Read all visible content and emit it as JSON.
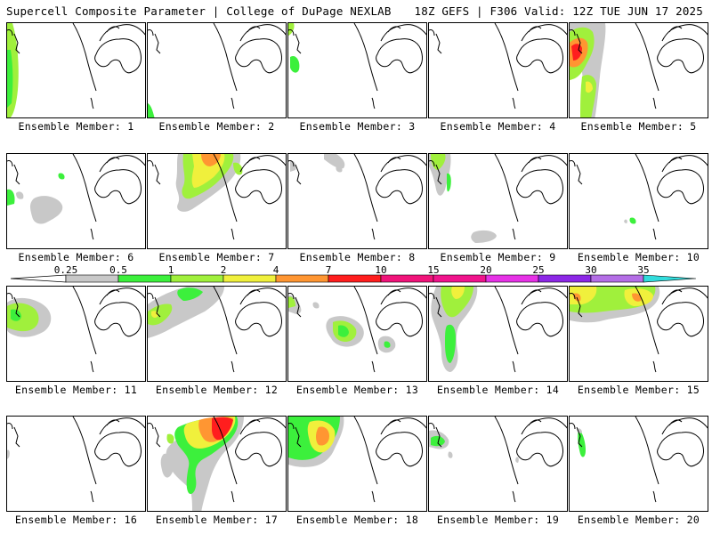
{
  "header": {
    "title": "Supercell Composite Parameter | College of DuPage NEXLAB",
    "run_info": "18Z GEFS | F306 Valid: 12Z TUE JUN 17 2025"
  },
  "colorbar": {
    "thresholds": [
      "0.25",
      "0.5",
      "1",
      "2",
      "4",
      "7",
      "10",
      "15",
      "20",
      "25",
      "30",
      "35"
    ],
    "colors": [
      "#c8c8c8",
      "#3cf03c",
      "#a0f03c",
      "#f0f03c",
      "#ff9632",
      "#ff1e1e",
      "#f0147a",
      "#f0148c",
      "#e632e6",
      "#8c28e6",
      "#b46ee6",
      "#32dcdc"
    ]
  },
  "panels": [
    {
      "member": 1,
      "label": "Ensemble Member: 1"
    },
    {
      "member": 2,
      "label": "Ensemble Member: 2"
    },
    {
      "member": 3,
      "label": "Ensemble Member: 3"
    },
    {
      "member": 4,
      "label": "Ensemble Member: 4"
    },
    {
      "member": 5,
      "label": "Ensemble Member: 5"
    },
    {
      "member": 6,
      "label": "Ensemble Member: 6"
    },
    {
      "member": 7,
      "label": "Ensemble Member: 7"
    },
    {
      "member": 8,
      "label": "Ensemble Member: 8"
    },
    {
      "member": 9,
      "label": "Ensemble Member: 9"
    },
    {
      "member": 10,
      "label": "Ensemble Member: 10"
    },
    {
      "member": 11,
      "label": "Ensemble Member: 11"
    },
    {
      "member": 12,
      "label": "Ensemble Member: 12"
    },
    {
      "member": 13,
      "label": "Ensemble Member: 13"
    },
    {
      "member": 14,
      "label": "Ensemble Member: 14"
    },
    {
      "member": 15,
      "label": "Ensemble Member: 15"
    },
    {
      "member": 16,
      "label": "Ensemble Member: 16"
    },
    {
      "member": 17,
      "label": "Ensemble Member: 17"
    },
    {
      "member": 18,
      "label": "Ensemble Member: 18"
    },
    {
      "member": 19,
      "label": "Ensemble Member: 19"
    },
    {
      "member": 20,
      "label": "Ensemble Member: 20"
    }
  ]
}
